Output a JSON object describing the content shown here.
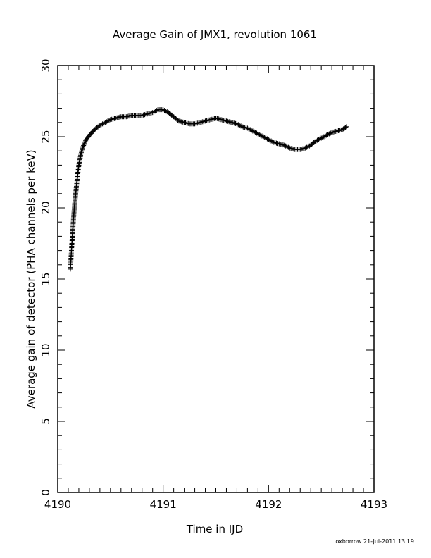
{
  "chart_data": {
    "type": "scatter",
    "title": "Average Gain of JMX1, revolution 1061",
    "xlabel": "Time in IJD",
    "ylabel": "Average gain of detector (PHA channels per keV)",
    "xlim": [
      4190,
      4193
    ],
    "ylim": [
      0,
      30
    ],
    "x_ticks": [
      4190,
      4191,
      4192,
      4193
    ],
    "y_ticks": [
      0,
      5,
      10,
      15,
      20,
      25,
      30
    ],
    "marker": "plus",
    "color": "#000000",
    "grid": false,
    "series": [
      {
        "x": [
          4190.12,
          4190.13,
          4190.14,
          4190.15,
          4190.16,
          4190.17,
          4190.18,
          4190.19,
          4190.2,
          4190.22,
          4190.24,
          4190.27,
          4190.3,
          4190.35,
          4190.4,
          4190.45,
          4190.5,
          4190.55,
          4190.6,
          4190.65,
          4190.7,
          4190.75,
          4190.8,
          4190.85,
          4190.9,
          4190.95,
          4191.0,
          4191.05,
          4191.1,
          4191.15,
          4191.2,
          4191.25,
          4191.3,
          4191.35,
          4191.4,
          4191.45,
          4191.5,
          4191.55,
          4191.6,
          4191.65,
          4191.7,
          4191.75,
          4191.8,
          4191.85,
          4191.9,
          4191.95,
          4192.0,
          4192.05,
          4192.1,
          4192.15,
          4192.2,
          4192.25,
          4192.3,
          4192.35,
          4192.4,
          4192.45,
          4192.5,
          4192.55,
          4192.6,
          4192.65,
          4192.7,
          4192.74
        ],
        "y": [
          15.7,
          17.0,
          18.2,
          19.3,
          20.2,
          21.0,
          21.7,
          22.4,
          23.0,
          23.8,
          24.3,
          24.8,
          25.1,
          25.5,
          25.8,
          26.0,
          26.2,
          26.3,
          26.4,
          26.4,
          26.5,
          26.5,
          26.5,
          26.6,
          26.7,
          26.9,
          26.9,
          26.7,
          26.4,
          26.1,
          26.0,
          25.9,
          25.9,
          26.0,
          26.1,
          26.2,
          26.3,
          26.2,
          26.1,
          26.0,
          25.9,
          25.7,
          25.6,
          25.4,
          25.2,
          25.0,
          24.8,
          24.6,
          24.5,
          24.4,
          24.2,
          24.1,
          24.1,
          24.2,
          24.4,
          24.7,
          24.9,
          25.1,
          25.3,
          25.4,
          25.5,
          25.7
        ]
      }
    ]
  },
  "footer": {
    "stamp": "oxborrow 21-Jul-2011 13:19"
  }
}
